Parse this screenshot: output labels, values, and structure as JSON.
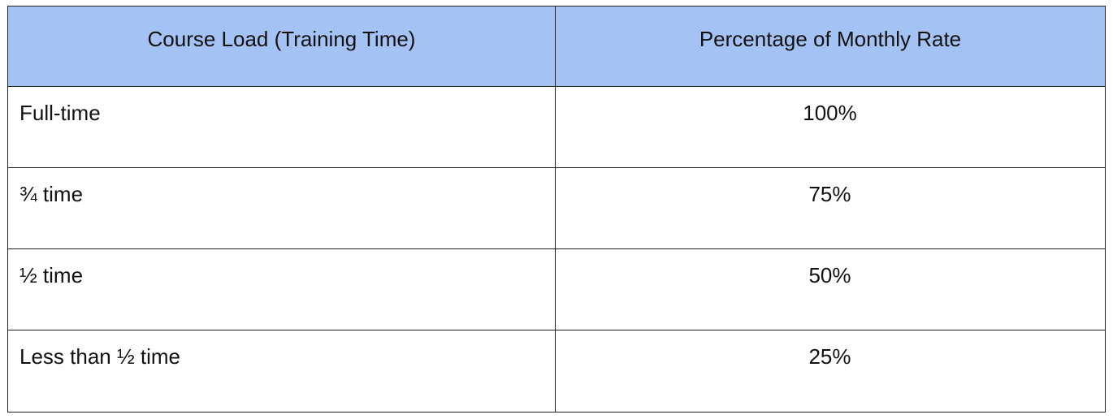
{
  "table": {
    "headers": [
      "Course Load (Training Time)",
      "Percentage of Monthly Rate"
    ],
    "rows": [
      [
        "Full-time",
        "100%"
      ],
      [
        "¾ time",
        "75%"
      ],
      [
        "½ time",
        "50%"
      ],
      [
        "Less than ½ time",
        "25%"
      ]
    ]
  },
  "colors": {
    "header_background": "#a4c2f4",
    "border": "#222222",
    "text": "#111111"
  }
}
